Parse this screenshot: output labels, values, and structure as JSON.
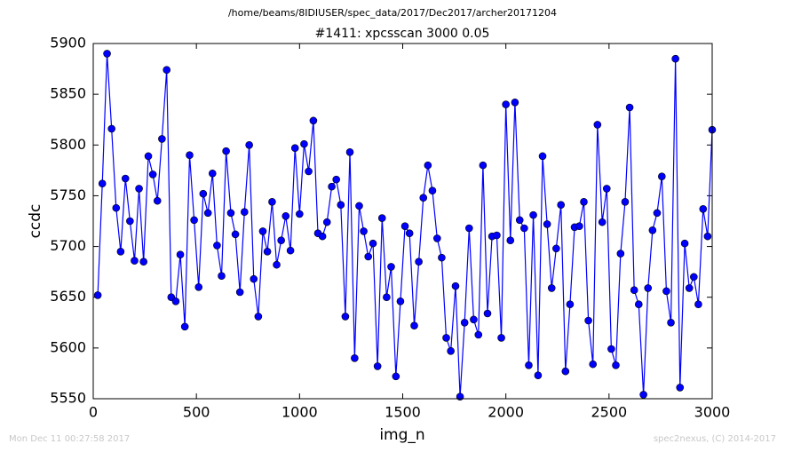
{
  "chart_data": {
    "type": "line",
    "suptitle": "/home/beams/8IDIUSER/spec_data/2017/Dec2017/archer20171204",
    "title": "#1411: xpcsscan 3000 0.05",
    "x_label": "img_n",
    "y_label": "ccdc",
    "footnote_left": "Mon Dec 11 00:27:58 2017",
    "footnote_right": "spec2nexus, (C) 2014-2017",
    "xlim": [
      0,
      3000
    ],
    "xticks": [
      0,
      500,
      1000,
      1500,
      2000,
      2500,
      3000
    ],
    "ylim": [
      5550,
      5900
    ],
    "yticks": [
      5550,
      5600,
      5650,
      5700,
      5750,
      5800,
      5850,
      5900
    ],
    "grid": false,
    "x": [
      22,
      44,
      67,
      89,
      111,
      133,
      156,
      178,
      200,
      222,
      244,
      267,
      289,
      311,
      333,
      356,
      378,
      400,
      422,
      444,
      467,
      489,
      511,
      533,
      556,
      578,
      600,
      622,
      644,
      667,
      689,
      711,
      733,
      756,
      778,
      800,
      822,
      844,
      867,
      889,
      911,
      933,
      956,
      978,
      1000,
      1022,
      1044,
      1067,
      1089,
      1111,
      1133,
      1156,
      1178,
      1200,
      1222,
      1244,
      1267,
      1289,
      1311,
      1333,
      1356,
      1378,
      1400,
      1422,
      1444,
      1467,
      1489,
      1511,
      1533,
      1556,
      1578,
      1600,
      1622,
      1644,
      1667,
      1689,
      1711,
      1733,
      1756,
      1778,
      1800,
      1822,
      1844,
      1867,
      1889,
      1911,
      1933,
      1956,
      1978,
      2000,
      2022,
      2044,
      2067,
      2089,
      2111,
      2133,
      2156,
      2178,
      2200,
      2222,
      2244,
      2267,
      2289,
      2311,
      2333,
      2356,
      2378,
      2400,
      2422,
      2444,
      2467,
      2489,
      2511,
      2533,
      2556,
      2578,
      2600,
      2622,
      2644,
      2667,
      2689,
      2711,
      2733,
      2756,
      2778,
      2800,
      2822,
      2844,
      2867,
      2889,
      2911,
      2933,
      2956,
      2978,
      3000
    ],
    "series": [
      {
        "color": "#0000ff",
        "values": [
          5652,
          5762,
          5890,
          5816,
          5738,
          5695,
          5767,
          5725,
          5686,
          5757,
          5685,
          5789,
          5771,
          5745,
          5806,
          5874,
          5650,
          5646,
          5692,
          5621,
          5790,
          5726,
          5660,
          5752,
          5733,
          5772,
          5701,
          5671,
          5794,
          5733,
          5712,
          5655,
          5734,
          5800,
          5668,
          5631,
          5715,
          5695,
          5744,
          5682,
          5706,
          5730,
          5696,
          5797,
          5732,
          5801,
          5774,
          5824,
          5713,
          5710,
          5724,
          5759,
          5766,
          5741,
          5631,
          5793,
          5590,
          5740,
          5715,
          5690,
          5703,
          5582,
          5728,
          5650,
          5680,
          5572,
          5646,
          5720,
          5713,
          5622,
          5685,
          5748,
          5780,
          5755,
          5708,
          5689,
          5610,
          5597,
          5661,
          5552,
          5625,
          5718,
          5628,
          5613,
          5780,
          5634,
          5710,
          5711,
          5610,
          5840,
          5706,
          5842,
          5726,
          5718,
          5583,
          5731,
          5573,
          5789,
          5722,
          5659,
          5698,
          5741,
          5577,
          5643,
          5719,
          5720,
          5744,
          5627,
          5584,
          5820,
          5724,
          5757,
          5599,
          5583,
          5693,
          5744,
          5837,
          5657,
          5643,
          5554,
          5659,
          5716,
          5733,
          5769,
          5656,
          5625,
          5885,
          5561,
          5703,
          5659,
          5670,
          5643,
          5737,
          5710,
          5815
        ]
      }
    ]
  }
}
